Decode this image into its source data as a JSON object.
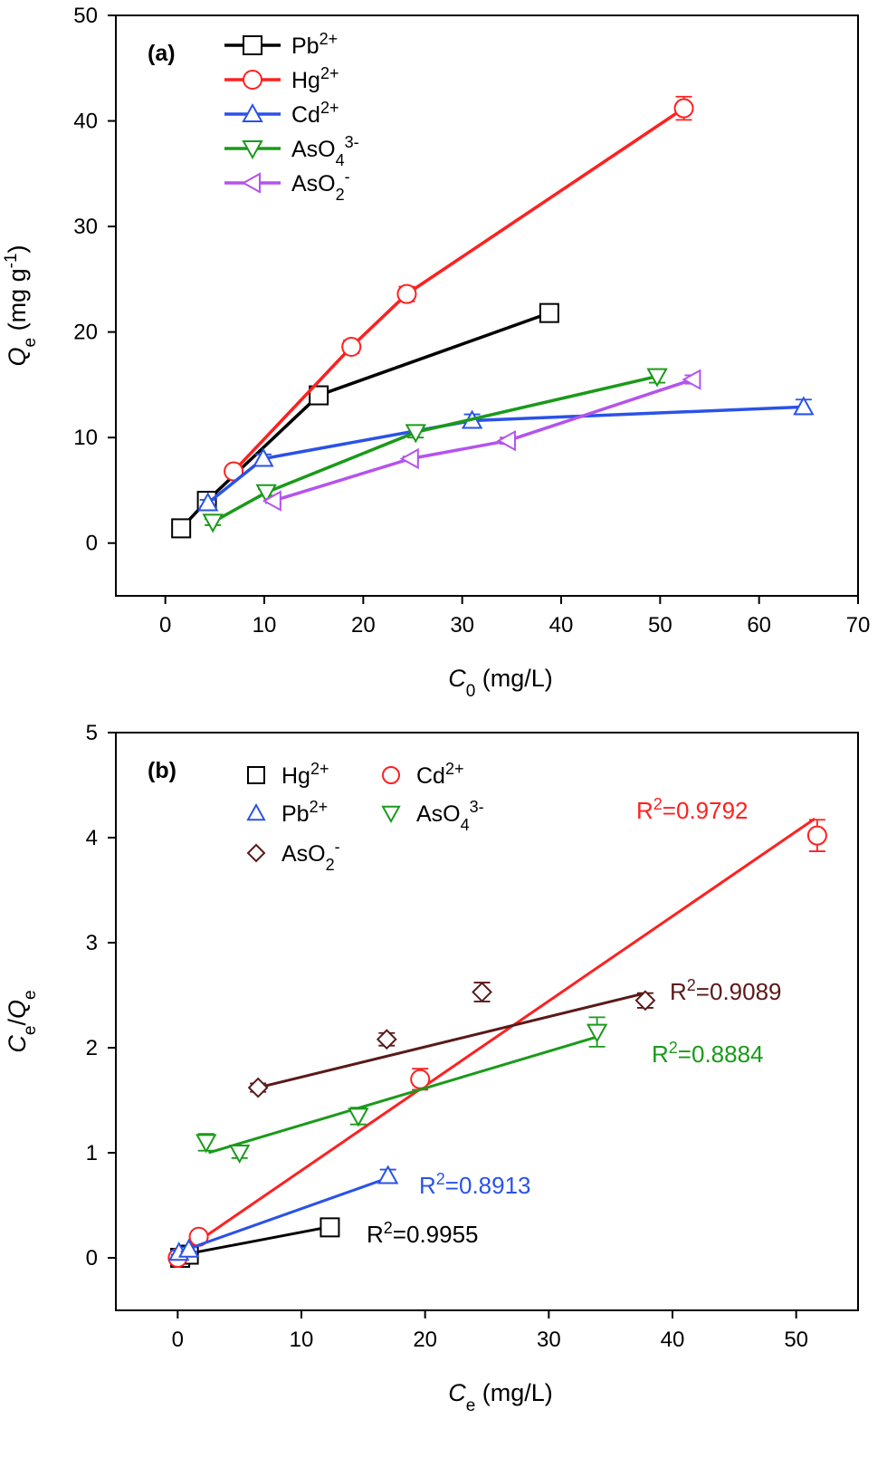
{
  "chart_data": [
    {
      "type": "line",
      "panel_label": "(a)",
      "ylabel": {
        "main": "Q",
        "sub": "e",
        "unit_pre": " (mg g",
        "unit_sup": "-1",
        "unit_post": ")"
      },
      "xlabel": {
        "main": "C",
        "sub": "0",
        "unit": " (mg/L)"
      },
      "xlim": [
        -5,
        70
      ],
      "ylim": [
        -5,
        50
      ],
      "xticks": [
        0,
        10,
        20,
        30,
        40,
        50,
        60,
        70
      ],
      "yticks": [
        0,
        10,
        20,
        30,
        40,
        50
      ],
      "legend": {
        "position": "top-left",
        "entries": [
          {
            "base": "Pb",
            "sub": "",
            "sup": "2+"
          },
          {
            "base": "Hg",
            "sub": "",
            "sup": "2+"
          },
          {
            "base": "Cd",
            "sub": "",
            "sup": "2+"
          },
          {
            "base": "AsO",
            "sub": "4",
            "sup": "3-"
          },
          {
            "base": "AsO",
            "sub": "2",
            "sup": "-"
          }
        ]
      },
      "series": [
        {
          "name": "Pb2+",
          "color": "#000000",
          "marker": "square",
          "x": [
            1.6,
            4.2,
            15.5,
            38.8
          ],
          "y": [
            1.4,
            4.0,
            14.0,
            21.8
          ],
          "err": [
            0.3,
            0.3,
            0.6,
            0.8
          ]
        },
        {
          "name": "Hg2+",
          "color": "#ff2020",
          "marker": "circle",
          "x": [
            6.9,
            18.8,
            24.4,
            52.4
          ],
          "y": [
            6.8,
            18.6,
            23.6,
            41.2
          ],
          "err": [
            0.3,
            0.6,
            0.7,
            1.1
          ]
        },
        {
          "name": "Cd2+",
          "color": "#2a52e8",
          "marker": "triangle-up",
          "x": [
            4.3,
            9.9,
            31.0,
            64.5
          ],
          "y": [
            3.8,
            8.0,
            11.6,
            12.9
          ],
          "err": [
            0.3,
            0.4,
            0.6,
            0.7
          ]
        },
        {
          "name": "AsO43-",
          "color": "#1a9a1a",
          "marker": "triangle-down",
          "x": [
            4.8,
            10.2,
            25.3,
            49.7
          ],
          "y": [
            2.0,
            4.8,
            10.5,
            15.8
          ],
          "err": [
            0.3,
            0.3,
            0.5,
            0.6
          ]
        },
        {
          "name": "AsO2-",
          "color": "#b453ee",
          "marker": "triangle-left",
          "x": [
            10.9,
            24.8,
            34.6,
            53.3
          ],
          "y": [
            4.0,
            8.0,
            9.7,
            15.5
          ],
          "err": [
            0.2,
            0.2,
            0.3,
            0.4
          ]
        }
      ]
    },
    {
      "type": "scatter",
      "panel_label": "(b)",
      "ylabel": {
        "main": "C",
        "sub": "e",
        "slash": "/",
        "main2": "Q",
        "sub2": "e"
      },
      "xlabel": {
        "main": "C",
        "sub": "e",
        "unit": " (mg/L)"
      },
      "xlim": [
        -5,
        55
      ],
      "ylim": [
        -0.5,
        5
      ],
      "xticks": [
        0,
        10,
        20,
        30,
        40,
        50
      ],
      "yticks": [
        0,
        1,
        2,
        3,
        4,
        5
      ],
      "legend": {
        "position": "top-left",
        "entries": [
          {
            "base": "Hg",
            "sub": "",
            "sup": "2+"
          },
          {
            "base": "Cd",
            "sub": "",
            "sup": "2+"
          },
          {
            "base": "Pb",
            "sub": "",
            "sup": "2+"
          },
          {
            "base": "AsO",
            "sub": "4",
            "sup": "3-"
          },
          {
            "base": "AsO",
            "sub": "2",
            "sup": "-"
          }
        ]
      },
      "series": [
        {
          "name": "Hg2+",
          "color": "#000000",
          "marker": "square",
          "x": [
            0.2,
            0.9,
            12.3
          ],
          "y": [
            0.0,
            0.03,
            0.29
          ],
          "err": [
            0.02,
            0.02,
            0.05
          ],
          "fit": {
            "x": [
              0.0,
              12.5
            ],
            "y": [
              0.02,
              0.3
            ]
          },
          "r2": "0.9955"
        },
        {
          "name": "Cd2+",
          "color": "#ff2020",
          "marker": "circle",
          "x": [
            0.0,
            1.7,
            19.6,
            51.7
          ],
          "y": [
            0.0,
            0.2,
            1.7,
            4.02
          ],
          "err": [
            0.02,
            0.03,
            0.1,
            0.15
          ],
          "fit": {
            "x": [
              -0.3,
              51.5
            ],
            "y": [
              0.0,
              4.18
            ]
          },
          "r2": "0.9792"
        },
        {
          "name": "Pb2+",
          "color": "#2a52e8",
          "marker": "triangle-up",
          "x": [
            0.1,
            0.9,
            17.0
          ],
          "y": [
            0.05,
            0.08,
            0.78
          ],
          "err": [
            0.02,
            0.02,
            0.06
          ],
          "fit": {
            "x": [
              0.0,
              17.0
            ],
            "y": [
              0.05,
              0.76
            ]
          },
          "r2": "0.8913"
        },
        {
          "name": "AsO43-",
          "color": "#1a9a1a",
          "marker": "triangle-down",
          "x": [
            2.3,
            5.0,
            14.6,
            33.9
          ],
          "y": [
            1.1,
            1.0,
            1.35,
            2.15
          ],
          "err": [
            0.08,
            0.05,
            0.08,
            0.14
          ],
          "fit": {
            "x": [
              2.5,
              33.8
            ],
            "y": [
              1.0,
              2.1
            ]
          },
          "r2": "0.8884"
        },
        {
          "name": "AsO2-",
          "color": "#5a1a1a",
          "marker": "diamond",
          "x": [
            6.5,
            16.9,
            24.6,
            37.8
          ],
          "y": [
            1.62,
            2.08,
            2.53,
            2.45
          ],
          "err": [
            0.04,
            0.06,
            0.09,
            0.07
          ],
          "fit": {
            "x": [
              6.5,
              37.8
            ],
            "y": [
              1.62,
              2.52
            ]
          },
          "r2": "0.9089"
        }
      ]
    }
  ]
}
